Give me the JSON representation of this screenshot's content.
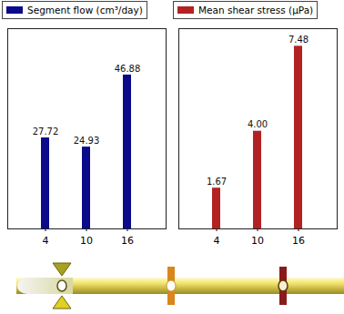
{
  "chart_data": [
    {
      "type": "bar",
      "categories": [
        "4",
        "10",
        "16"
      ],
      "series": [
        {
          "name": "Segment flow (cm³/day)",
          "color": "#0a0a8a",
          "values": [
            27.72,
            24.93,
            46.88
          ]
        }
      ],
      "ylim": [
        0,
        61
      ],
      "yticks": [],
      "tick_labels": "x",
      "data_labels": true,
      "legend": "top"
    },
    {
      "type": "bar",
      "categories": [
        "4",
        "10",
        "16"
      ],
      "series": [
        {
          "name": "Mean shear stress (μPa)",
          "color": "#b22222",
          "values": [
            1.67,
            4.0,
            7.48
          ],
          "value_labels": [
            "1.67",
            "4.00",
            "7.48"
          ]
        }
      ],
      "ylim": [
        0,
        8.2
      ],
      "yticks": [],
      "tick_labels": "x",
      "data_labels": true,
      "legend": "top"
    }
  ]
}
